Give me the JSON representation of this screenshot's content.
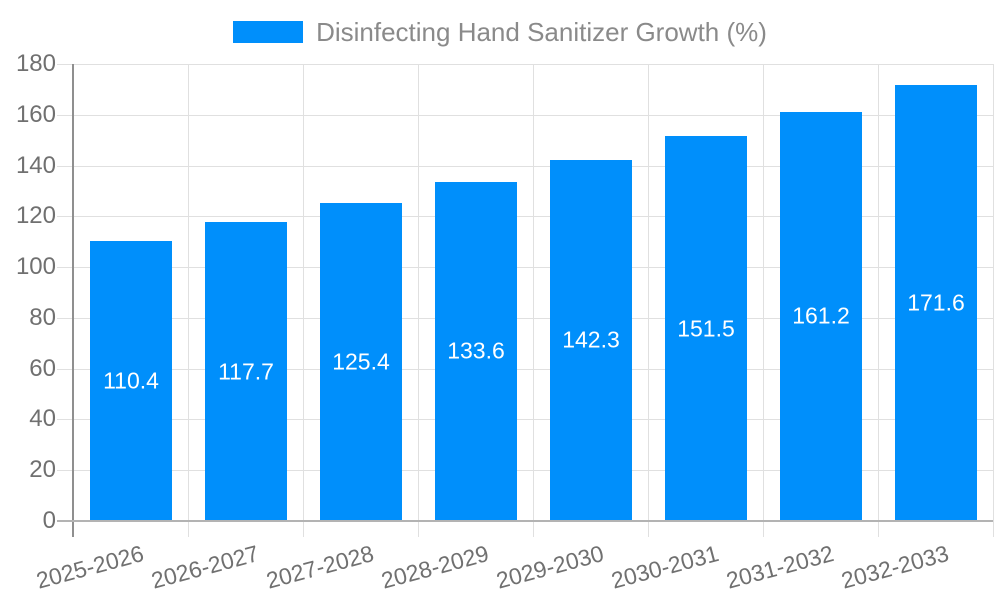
{
  "chart_data": {
    "type": "bar",
    "title": "Disinfecting Hand Sanitizer Growth (%)",
    "legend": {
      "label": "Disinfecting Hand Sanitizer Growth (%)",
      "position": "top-center",
      "marker": "rect"
    },
    "categories": [
      "2025-2026",
      "2026-2027",
      "2027-2028",
      "2028-2029",
      "2029-2030",
      "2030-2031",
      "2031-2032",
      "2032-2033"
    ],
    "values": [
      110.4,
      117.7,
      125.4,
      133.6,
      142.3,
      151.5,
      161.2,
      171.6
    ],
    "y_ticks": [
      0,
      20,
      40,
      60,
      80,
      100,
      120,
      140,
      160,
      180
    ],
    "xlabel": "",
    "ylabel": "",
    "ylim": [
      0,
      180
    ],
    "grid": true,
    "x_label_rotation_deg": -15,
    "value_labels": "inside-center",
    "colors": {
      "bar": "#008FFB",
      "bar_value_text": "#ffffff",
      "axis_text": "#707070",
      "legend_text": "#8a8a8a",
      "gridline": "#e0e0e0",
      "x_axis_line": "#b3b3b3",
      "y_axis_line": "#8f8f8f",
      "background": "#ffffff"
    }
  }
}
